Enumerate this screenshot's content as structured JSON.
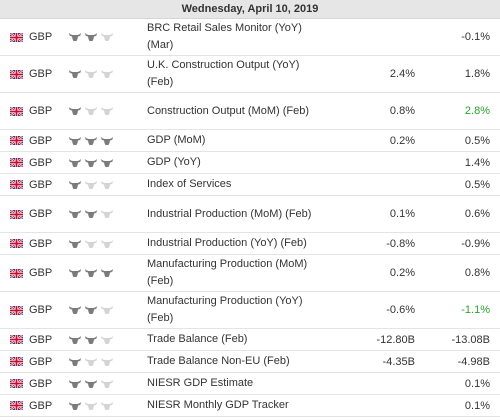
{
  "header": {
    "date": "Wednesday, April 10, 2019"
  },
  "colors": {
    "positive": "#27a327",
    "bull_active": "#7b7b7b",
    "bull_inactive": "#d4d4d4"
  },
  "events": [
    {
      "currency": "GBP",
      "importance": 2,
      "event": "BRC Retail Sales Monitor (YoY) (Mar)",
      "col1": "",
      "col2": "-0.1%",
      "col2_green": false,
      "tall": true
    },
    {
      "currency": "GBP",
      "importance": 1,
      "event": "U.K. Construction Output (YoY) (Feb)",
      "col1": "2.4%",
      "col2": "1.8%",
      "col2_green": false,
      "tall": true
    },
    {
      "currency": "GBP",
      "importance": 1,
      "event": "Construction Output (MoM) (Feb)",
      "col1": "0.8%",
      "col2": "2.8%",
      "col2_green": true,
      "tall": true
    },
    {
      "currency": "GBP",
      "importance": 3,
      "event": "GDP (MoM)",
      "col1": "0.2%",
      "col2": "0.5%",
      "col2_green": false,
      "tall": false
    },
    {
      "currency": "GBP",
      "importance": 3,
      "event": "GDP (YoY)",
      "col1": "",
      "col2": "1.4%",
      "col2_green": false,
      "tall": false
    },
    {
      "currency": "GBP",
      "importance": 1,
      "event": "Index of Services",
      "col1": "",
      "col2": "0.5%",
      "col2_green": false,
      "tall": false
    },
    {
      "currency": "GBP",
      "importance": 2,
      "event": "Industrial Production (MoM) (Feb)",
      "col1": "0.1%",
      "col2": "0.6%",
      "col2_green": false,
      "tall": true
    },
    {
      "currency": "GBP",
      "importance": 1,
      "event": "Industrial Production (YoY) (Feb)",
      "col1": "-0.8%",
      "col2": "-0.9%",
      "col2_green": false,
      "tall": false
    },
    {
      "currency": "GBP",
      "importance": 3,
      "event": "Manufacturing Production (MoM) (Feb)",
      "col1": "0.2%",
      "col2": "0.8%",
      "col2_green": false,
      "tall": true
    },
    {
      "currency": "GBP",
      "importance": 2,
      "event": "Manufacturing Production (YoY) (Feb)",
      "col1": "-0.6%",
      "col2": "-1.1%",
      "col2_green": true,
      "tall": true
    },
    {
      "currency": "GBP",
      "importance": 2,
      "event": "Trade Balance (Feb)",
      "col1": "-12.80B",
      "col2": "-13.08B",
      "col2_green": false,
      "tall": false
    },
    {
      "currency": "GBP",
      "importance": 1,
      "event": "Trade Balance Non-EU (Feb)",
      "col1": "-4.35B",
      "col2": "-4.98B",
      "col2_green": false,
      "tall": false
    },
    {
      "currency": "GBP",
      "importance": 2,
      "event": "NIESR GDP Estimate",
      "col1": "",
      "col2": "0.1%",
      "col2_green": false,
      "tall": false
    },
    {
      "currency": "GBP",
      "importance": 1,
      "event": "NIESR Monthly GDP Tracker",
      "col1": "",
      "col2": "0.1%",
      "col2_green": false,
      "tall": false
    }
  ]
}
